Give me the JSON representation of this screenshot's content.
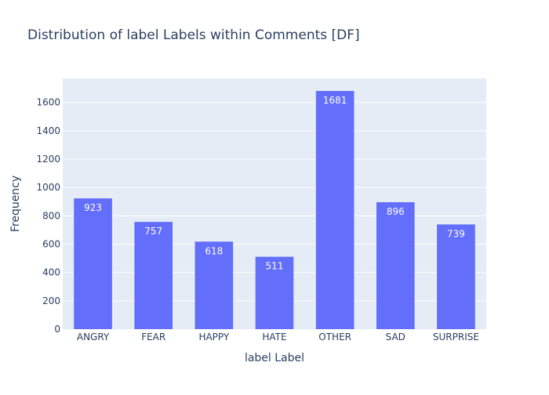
{
  "chart_data": {
    "type": "bar",
    "title": "Distribution of label Labels within Comments [DF]",
    "xlabel": "label Label",
    "ylabel": "Frequency",
    "categories": [
      "ANGRY",
      "FEAR",
      "HAPPY",
      "HATE",
      "OTHER",
      "SAD",
      "SURPRISE"
    ],
    "values": [
      923,
      757,
      618,
      511,
      1681,
      896,
      739
    ],
    "ylim": [
      0,
      1770
    ],
    "yticks": [
      0,
      200,
      400,
      600,
      800,
      1000,
      1200,
      1400,
      1600
    ],
    "data_labels": true,
    "grid": true,
    "legend": "none"
  },
  "colors": {
    "bar": "#636efa",
    "plot_bg": "#e5ecf6",
    "grid": "#ffffff",
    "text": "#2a3f5f"
  }
}
